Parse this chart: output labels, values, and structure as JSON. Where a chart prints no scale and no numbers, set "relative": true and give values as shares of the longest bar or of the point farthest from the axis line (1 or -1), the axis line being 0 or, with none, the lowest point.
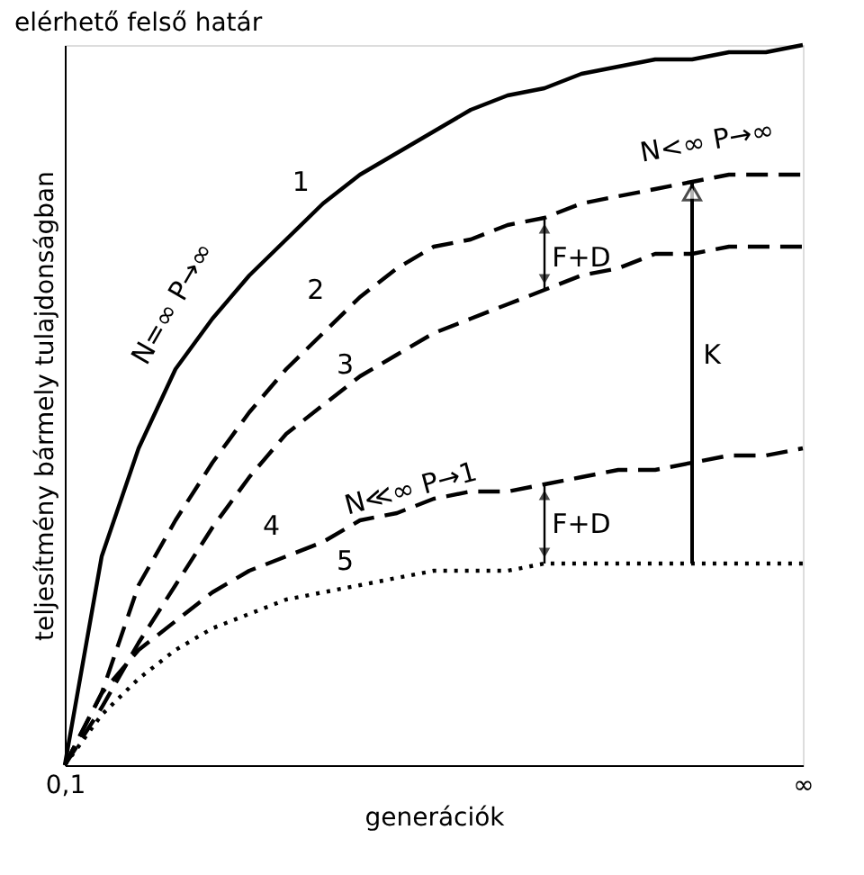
{
  "chart_data": {
    "type": "line",
    "relative": true,
    "title": "elérhető felső határ",
    "xlabel": "generációk",
    "ylabel": "teljesítmény bármely tulajdonságban",
    "categories": [
      "0,1",
      null,
      null,
      null,
      null,
      null,
      null,
      null,
      null,
      null,
      null,
      null,
      null,
      null,
      null,
      null,
      null,
      null,
      null,
      null,
      "∞"
    ],
    "series": [
      {
        "name": "1",
        "color": "#000000",
        "line_style": "solid",
        "values": [
          0,
          0.29,
          0.44,
          0.55,
          0.62,
          0.68,
          0.73,
          0.78,
          0.82,
          0.85,
          0.88,
          0.91,
          0.93,
          0.94,
          0.96,
          0.97,
          0.98,
          0.98,
          0.99,
          0.99,
          1.0
        ]
      },
      {
        "name": "2",
        "color": "#000000",
        "line_style": "dashed",
        "values": [
          0,
          0.1,
          0.25,
          0.34,
          0.42,
          0.49,
          0.55,
          0.6,
          0.65,
          0.69,
          0.72,
          0.73,
          0.75,
          0.76,
          0.78,
          0.79,
          0.8,
          0.81,
          0.82,
          0.82,
          0.82
        ]
      },
      {
        "name": "3",
        "color": "#000000",
        "line_style": "dashed",
        "values": [
          0,
          0.08,
          0.17,
          0.25,
          0.33,
          0.4,
          0.46,
          0.5,
          0.54,
          0.57,
          0.6,
          0.62,
          0.64,
          0.66,
          0.68,
          0.69,
          0.71,
          0.71,
          0.72,
          0.72,
          0.72
        ]
      },
      {
        "name": "4",
        "color": "#000000",
        "line_style": "dashed",
        "values": [
          0,
          0.1,
          0.16,
          0.2,
          0.24,
          0.27,
          0.29,
          0.31,
          0.34,
          0.35,
          0.37,
          0.38,
          0.38,
          0.39,
          0.4,
          0.41,
          0.41,
          0.42,
          0.43,
          0.43,
          0.44
        ]
      },
      {
        "name": "5",
        "color": "#000000",
        "line_style": "dotted",
        "values": [
          0,
          0.07,
          0.12,
          0.16,
          0.19,
          0.21,
          0.23,
          0.24,
          0.25,
          0.26,
          0.27,
          0.27,
          0.27,
          0.28,
          0.28,
          0.28,
          0.28,
          0.28,
          0.28,
          0.28,
          0.28
        ]
      }
    ],
    "annotations": [
      "N=∞ P→∞",
      "N<∞ P→∞",
      "N≪∞ P→1",
      "F+D",
      "F+D",
      "K"
    ],
    "grid": false,
    "tick_labels": "x"
  }
}
